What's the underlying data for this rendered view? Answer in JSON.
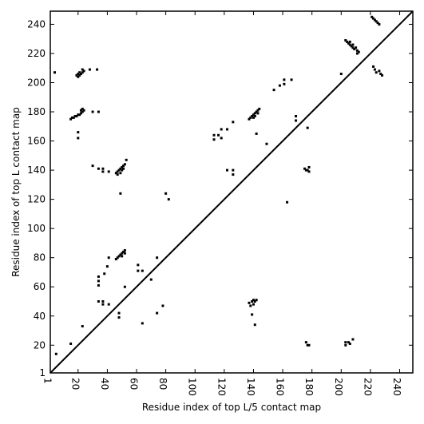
{
  "chart_data": {
    "type": "scatter",
    "title": "",
    "xlabel": "Residue index of top L/5 contact map",
    "ylabel": "Residue index of top L contact map",
    "xlim": [
      1,
      249
    ],
    "ylim": [
      1,
      249
    ],
    "x_ticks": [
      1,
      20,
      40,
      60,
      80,
      100,
      120,
      140,
      160,
      180,
      200,
      220,
      240
    ],
    "y_ticks": [
      1,
      20,
      40,
      60,
      80,
      100,
      120,
      140,
      160,
      180,
      200,
      220,
      240
    ],
    "x_tick_labels": [
      "1",
      "20",
      "40",
      "60",
      "80",
      "100",
      "120",
      "140",
      "160",
      "180",
      "200",
      "220",
      "240"
    ],
    "y_tick_labels": [
      "1",
      "20",
      "40",
      "60",
      "80",
      "100",
      "120",
      "140",
      "160",
      "180",
      "200",
      "220",
      "240"
    ],
    "grid": false,
    "diagonal_line": true,
    "colors": {
      "points": "#000000",
      "line": "#000000",
      "background": "#ffffff"
    },
    "series": [
      {
        "values_upper": [
          [
            4,
            207
          ],
          [
            19,
            205
          ],
          [
            20,
            204
          ],
          [
            20,
            206
          ],
          [
            21,
            205
          ],
          [
            21,
            207
          ],
          [
            22,
            206
          ],
          [
            23,
            207
          ],
          [
            23,
            209
          ],
          [
            24,
            208
          ],
          [
            28,
            209
          ],
          [
            33,
            209
          ],
          [
            15,
            175
          ],
          [
            16,
            176
          ],
          [
            17,
            176
          ],
          [
            18,
            177
          ],
          [
            19,
            177
          ],
          [
            20,
            178
          ],
          [
            21,
            178
          ],
          [
            22,
            179
          ],
          [
            22,
            181
          ],
          [
            23,
            180
          ],
          [
            23,
            182
          ],
          [
            24,
            181
          ],
          [
            30,
            180
          ],
          [
            34,
            180
          ],
          [
            20,
            166
          ],
          [
            20,
            162
          ],
          [
            30,
            143
          ],
          [
            34,
            141
          ],
          [
            37,
            141
          ],
          [
            37,
            139
          ],
          [
            41,
            139
          ],
          [
            46,
            138
          ],
          [
            47,
            139
          ],
          [
            47,
            137
          ],
          [
            48,
            140
          ],
          [
            49,
            138
          ],
          [
            49,
            141
          ],
          [
            50,
            140
          ],
          [
            50,
            142
          ],
          [
            51,
            141
          ],
          [
            51,
            143
          ],
          [
            52,
            144
          ],
          [
            53,
            147
          ],
          [
            49,
            124
          ],
          [
            34,
            67
          ],
          [
            34,
            64
          ],
          [
            34,
            61
          ],
          [
            34,
            50
          ],
          [
            37,
            50
          ],
          [
            37,
            48
          ],
          [
            38,
            69
          ],
          [
            40,
            74
          ],
          [
            41,
            80
          ],
          [
            41,
            48
          ],
          [
            46,
            79
          ],
          [
            47,
            80
          ],
          [
            48,
            81
          ],
          [
            49,
            82
          ],
          [
            50,
            81
          ],
          [
            50,
            83
          ],
          [
            51,
            84
          ],
          [
            52,
            83
          ],
          [
            52,
            85
          ],
          [
            52,
            60
          ],
          [
            48,
            42
          ],
          [
            48,
            39
          ],
          [
            61,
            75
          ],
          [
            61,
            71
          ],
          [
            64,
            71
          ],
          [
            64,
            35
          ],
          [
            70,
            65
          ],
          [
            74,
            80
          ],
          [
            74,
            42
          ],
          [
            78,
            47
          ],
          [
            23,
            33
          ],
          [
            15,
            21
          ],
          [
            5,
            14
          ],
          [
            80,
            124
          ],
          [
            82,
            120
          ],
          [
            113,
            164
          ],
          [
            113,
            161
          ],
          [
            116,
            164
          ],
          [
            118,
            168
          ],
          [
            118,
            162
          ],
          [
            122,
            168
          ],
          [
            122,
            140
          ],
          [
            126,
            173
          ],
          [
            126,
            140
          ],
          [
            126,
            137
          ],
          [
            137,
            175
          ],
          [
            138,
            176
          ],
          [
            139,
            177
          ],
          [
            140,
            176
          ],
          [
            140,
            178
          ],
          [
            141,
            177
          ],
          [
            141,
            179
          ],
          [
            142,
            180
          ],
          [
            142,
            165
          ],
          [
            143,
            179
          ],
          [
            143,
            181
          ],
          [
            144,
            182
          ],
          [
            149,
            158
          ],
          [
            137,
            49
          ],
          [
            138,
            47
          ],
          [
            139,
            50
          ],
          [
            139,
            41
          ],
          [
            140,
            48
          ],
          [
            140,
            51
          ],
          [
            141,
            50
          ],
          [
            141,
            34
          ],
          [
            142,
            51
          ],
          [
            154,
            195
          ],
          [
            158,
            198
          ],
          [
            161,
            202
          ],
          [
            161,
            199
          ],
          [
            166,
            202
          ],
          [
            169,
            177
          ],
          [
            169,
            174
          ],
          [
            175,
            141
          ],
          [
            176,
            140
          ],
          [
            177,
            140
          ],
          [
            177,
            169
          ],
          [
            178,
            142
          ],
          [
            178,
            139
          ],
          [
            163,
            118
          ],
          [
            176,
            22
          ],
          [
            177,
            20
          ],
          [
            178,
            20
          ],
          [
            200,
            206
          ],
          [
            203,
            22
          ],
          [
            203,
            20
          ],
          [
            205,
            22
          ],
          [
            206,
            21
          ],
          [
            208,
            24
          ],
          [
            203,
            229
          ],
          [
            204,
            228
          ],
          [
            205,
            227
          ],
          [
            206,
            228
          ],
          [
            206,
            226
          ],
          [
            207,
            225
          ],
          [
            208,
            226
          ],
          [
            208,
            224
          ],
          [
            209,
            223
          ],
          [
            210,
            224
          ],
          [
            211,
            222
          ],
          [
            211,
            220
          ],
          [
            212,
            221
          ],
          [
            221,
            245
          ],
          [
            222,
            244
          ],
          [
            223,
            243
          ],
          [
            224,
            242
          ],
          [
            225,
            241
          ],
          [
            226,
            240
          ],
          [
            222,
            211
          ],
          [
            223,
            209
          ],
          [
            224,
            207
          ],
          [
            226,
            208
          ],
          [
            227,
            206
          ],
          [
            228,
            205
          ]
        ]
      }
    ]
  }
}
